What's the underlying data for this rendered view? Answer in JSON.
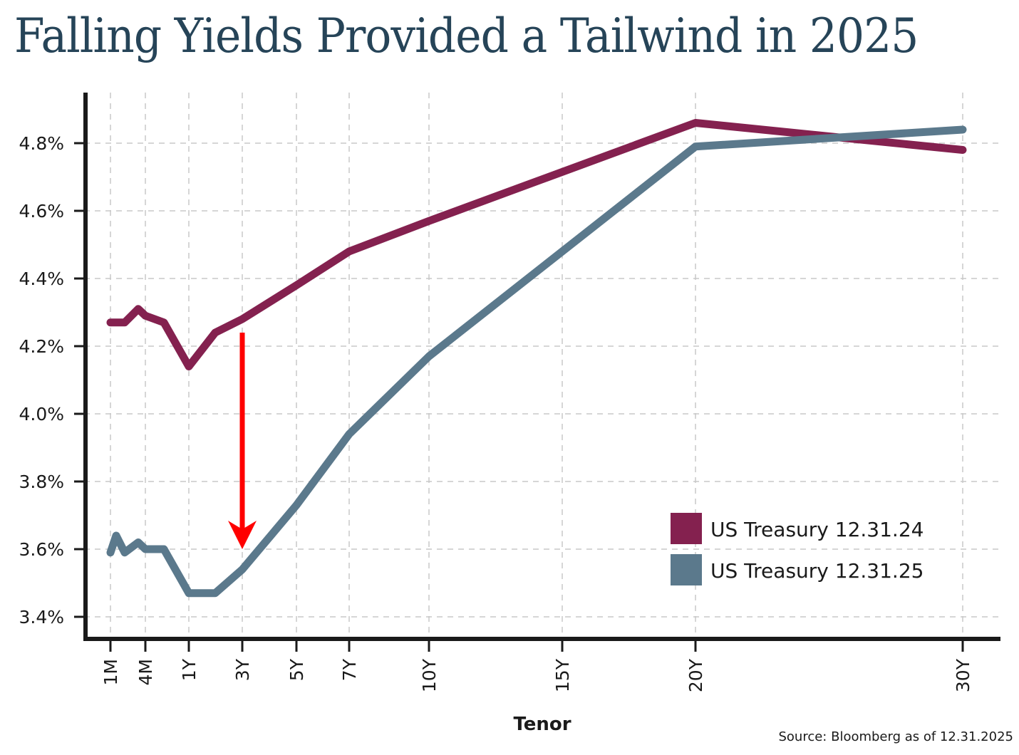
{
  "chart_data": {
    "type": "line",
    "title": "Falling Yields Provided a Tailwind in 2025",
    "xlabel": "Tenor",
    "ylabel": "",
    "source": "Source: Bloomberg as of 12.31.2025",
    "ylim": [
      3.4,
      4.9
    ],
    "yticks": [
      3.4,
      3.6,
      3.8,
      4.0,
      4.2,
      4.4,
      4.6,
      4.8
    ],
    "ytick_labels": [
      "3.4%",
      "3.6%",
      "3.8%",
      "4.0%",
      "4.2%",
      "4.4%",
      "4.6%",
      "4.8%"
    ],
    "xticks": [
      "1M",
      "4M",
      "1Y",
      "3Y",
      "5Y",
      "7Y",
      "10Y",
      "15Y",
      "20Y",
      "30Y"
    ],
    "grid": true,
    "legend_position": "bottom-right",
    "series": [
      {
        "name": "US Treasury 12.31.24",
        "color": "#84214f",
        "x": [
          "1M",
          "2M",
          "3M",
          "4M",
          "6M",
          "1Y",
          "2Y",
          "3Y",
          "5Y",
          "7Y",
          "10Y",
          "20Y",
          "30Y"
        ],
        "values": [
          4.27,
          4.27,
          4.31,
          4.29,
          4.27,
          4.14,
          4.24,
          4.28,
          4.38,
          4.48,
          4.57,
          4.86,
          4.78
        ]
      },
      {
        "name": "US Treasury 12.31.25",
        "color": "#5b798c",
        "x": [
          "1M",
          "6W",
          "2M",
          "3M",
          "4M",
          "6M",
          "1Y",
          "2Y",
          "3Y",
          "5Y",
          "7Y",
          "10Y",
          "20Y",
          "30Y"
        ],
        "values": [
          3.59,
          3.64,
          3.59,
          3.62,
          3.6,
          3.6,
          3.47,
          3.47,
          3.54,
          3.73,
          3.94,
          4.17,
          4.79,
          4.84
        ]
      }
    ],
    "annotation": {
      "type": "arrow",
      "color": "#ff0000",
      "x": "3Y",
      "from": 4.24,
      "to": 3.6
    }
  }
}
